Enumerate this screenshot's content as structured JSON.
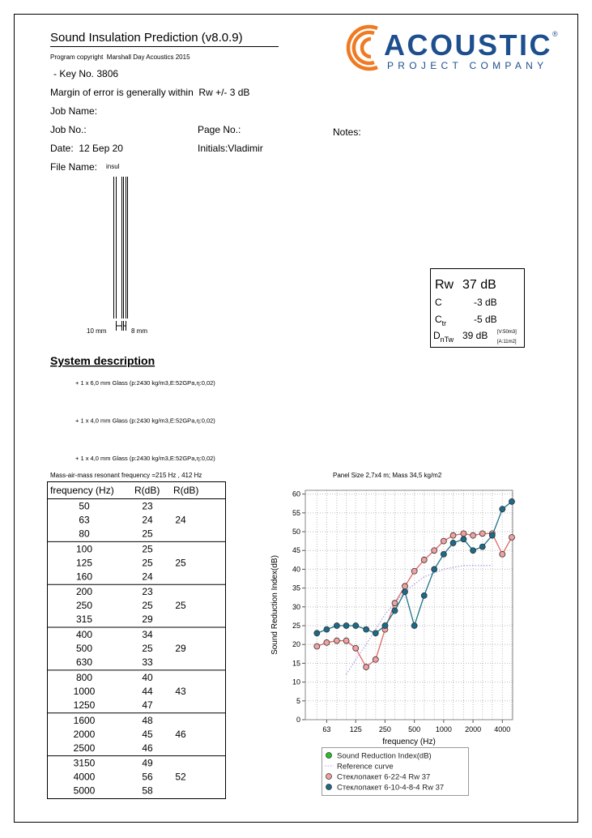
{
  "header": {
    "title": "Sound Insulation Prediction (v8.0.9)",
    "copyright": "Program copyright  Marshall Day Acoustics 2015",
    "key": "- Key No. 3806",
    "margin": "Margin of error is generally within  Rw +/- 3 dB",
    "job_name": "Job Name:",
    "job_no": "Job No.:",
    "page_no": "Page No.:",
    "notes": "Notes:",
    "date": "Date:  12 Бер 20",
    "initials": "Initials:Vladimir",
    "file_name_label": "File Name:",
    "file_name": "insul"
  },
  "logo": {
    "name": "ACOUSTIC",
    "mark": "®",
    "tagline": "PROJECT COMPANY"
  },
  "diagram": {
    "left_label": "10 mm",
    "right_label": "8 mm"
  },
  "ratings": {
    "rw_label": "Rw",
    "rw": "37 dB",
    "c_label": "C",
    "c": "-3 dB",
    "ctr_label": "C",
    "ctr_sub": "tr",
    "ctr": "-5 dB",
    "dntw_label": "D",
    "dntw_sub": "nTw",
    "dntw": "39 dB",
    "volume": "[V:50m3]",
    "area": "[A:11m2]"
  },
  "system": {
    "heading": "System description",
    "layers": [
      "+ 1 x 6,0 mm Glass (p:2430 kg/m3,E:52GPa,η:0,02)",
      "+ 1 x 4,0 mm Glass (p:2430 kg/m3,E:52GPa,η:0,02)",
      "+ 1 x 4,0 mm Glass (p:2430 kg/m3,E:52GPa,η:0,02)"
    ],
    "resonance": "Mass-air-mass resonant frequency =215 Hz , 412 Hz"
  },
  "table": {
    "header": [
      "frequency (Hz)",
      "R(dB)",
      "R(dB)"
    ],
    "groups": [
      {
        "rows": [
          [
            50,
            23
          ],
          [
            63,
            24
          ],
          [
            80,
            25
          ]
        ],
        "octave": 24
      },
      {
        "rows": [
          [
            100,
            25
          ],
          [
            125,
            25
          ],
          [
            160,
            24
          ]
        ],
        "octave": 25
      },
      {
        "rows": [
          [
            200,
            23
          ],
          [
            250,
            25
          ],
          [
            315,
            29
          ]
        ],
        "octave": 25
      },
      {
        "rows": [
          [
            400,
            34
          ],
          [
            500,
            25
          ],
          [
            630,
            33
          ]
        ],
        "octave": 29
      },
      {
        "rows": [
          [
            800,
            40
          ],
          [
            1000,
            44
          ],
          [
            1250,
            47
          ]
        ],
        "octave": 43
      },
      {
        "rows": [
          [
            1600,
            48
          ],
          [
            2000,
            45
          ],
          [
            2500,
            46
          ]
        ],
        "octave": 46
      },
      {
        "rows": [
          [
            3150,
            49
          ],
          [
            4000,
            56
          ],
          [
            5000,
            58
          ]
        ],
        "octave": 52
      }
    ]
  },
  "chart_data": {
    "type": "line",
    "title": "Panel Size 2,7x4 m; Mass 34,5 kg/m2",
    "x_label": "frequency (Hz)",
    "y_label": "Sound Reduction Index(dB)",
    "x": [
      50,
      63,
      80,
      100,
      125,
      160,
      200,
      250,
      315,
      400,
      500,
      630,
      800,
      1000,
      1250,
      1600,
      2000,
      2500,
      3150,
      4000,
      5000
    ],
    "log_x": true,
    "xlim": [
      38,
      5100
    ],
    "xticks": [
      63,
      125,
      250,
      500,
      1000,
      2000,
      4000
    ],
    "ylim": [
      0,
      61
    ],
    "yticks": [
      0,
      5,
      10,
      15,
      20,
      25,
      30,
      35,
      40,
      45,
      50,
      55,
      60
    ],
    "grid": true,
    "series": [
      {
        "name": "Sound Reduction Index(dB)",
        "color": "#22c322",
        "marker_color": "#22c322",
        "markers": true,
        "values": [
          null,
          null,
          null,
          null,
          null,
          null,
          null,
          null,
          null,
          null,
          null,
          null,
          null,
          null,
          null,
          null,
          null,
          null,
          null,
          null,
          null
        ]
      },
      {
        "name": "Reference curve",
        "color": "#a99ae6",
        "line_style": "dotted",
        "markers": false,
        "values": [
          null,
          null,
          null,
          12,
          16,
          20,
          24,
          28,
          31,
          34,
          36,
          38,
          39,
          40,
          40.5,
          41,
          41,
          41,
          41,
          null,
          null
        ]
      },
      {
        "name": "Стеклопакет 6-22-4 Rw 37",
        "color": "#e06666",
        "marker_color": "#f0a0a0",
        "markers": true,
        "values": [
          19.5,
          20.5,
          21,
          21,
          19,
          14,
          16,
          24,
          31,
          35.5,
          39.5,
          42.5,
          45,
          47.5,
          49,
          49.5,
          49,
          49.5,
          49.5,
          44,
          48.5
        ]
      },
      {
        "name": "Стеклопакет 6-10-4-8-4 Rw 37",
        "color": "#1b7384",
        "marker_color": "#1a6a8a",
        "markers": true,
        "values": [
          23,
          24,
          25,
          25,
          25,
          24,
          23,
          25,
          29,
          34,
          25,
          33,
          40,
          44,
          47,
          48,
          45,
          46,
          49,
          56,
          58
        ]
      }
    ]
  }
}
